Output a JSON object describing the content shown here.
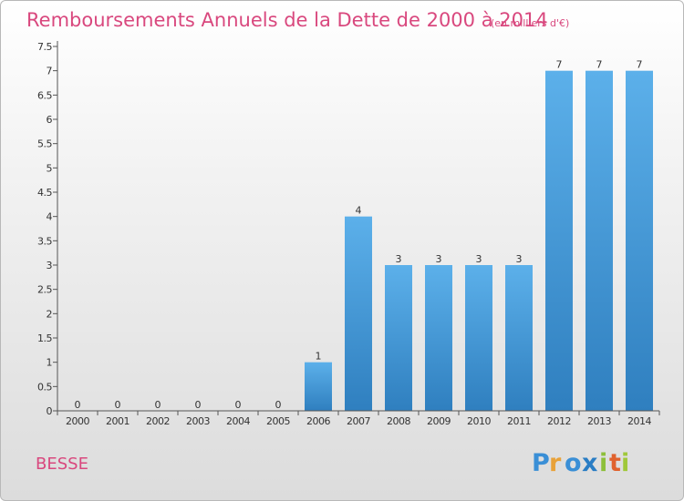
{
  "chart_data": {
    "type": "bar",
    "title": "Remboursements Annuels de la Dette de 2000 à 2014",
    "subtitle": "(en milliers d'€)",
    "categories": [
      "2000",
      "2001",
      "2002",
      "2003",
      "2004",
      "2005",
      "2006",
      "2007",
      "2008",
      "2009",
      "2010",
      "2011",
      "2012",
      "2013",
      "2014"
    ],
    "values": [
      0,
      0,
      0,
      0,
      0,
      0,
      1,
      4,
      3,
      3,
      3,
      3,
      7,
      7,
      7
    ],
    "value_labels": [
      "0",
      "0",
      "0",
      "0",
      "0",
      "0",
      "1",
      "4",
      "3",
      "3",
      "3",
      "3",
      "7",
      "7",
      "7"
    ],
    "y_ticks": [
      "0",
      "0.5",
      "1",
      "1.5",
      "2",
      "2.5",
      "3",
      "3.5",
      "4",
      "4.5",
      "5",
      "5.5",
      "6",
      "6.5",
      "7",
      "7.5"
    ],
    "ylim": [
      0,
      7.5
    ],
    "grid": false,
    "bar_color": "#3f96d8",
    "bar_color_light": "#5aaee8"
  },
  "footer": {
    "place": "BESSE",
    "brand_letters": [
      "P",
      "r",
      "o",
      "x",
      "i",
      "t",
      "i"
    ],
    "brand_colors": [
      "#3a8fd6",
      "#e8a23a",
      "#3a8fd6",
      "#2a7dc4",
      "#8dbf3a",
      "#e0622e",
      "#a0c83a"
    ]
  }
}
